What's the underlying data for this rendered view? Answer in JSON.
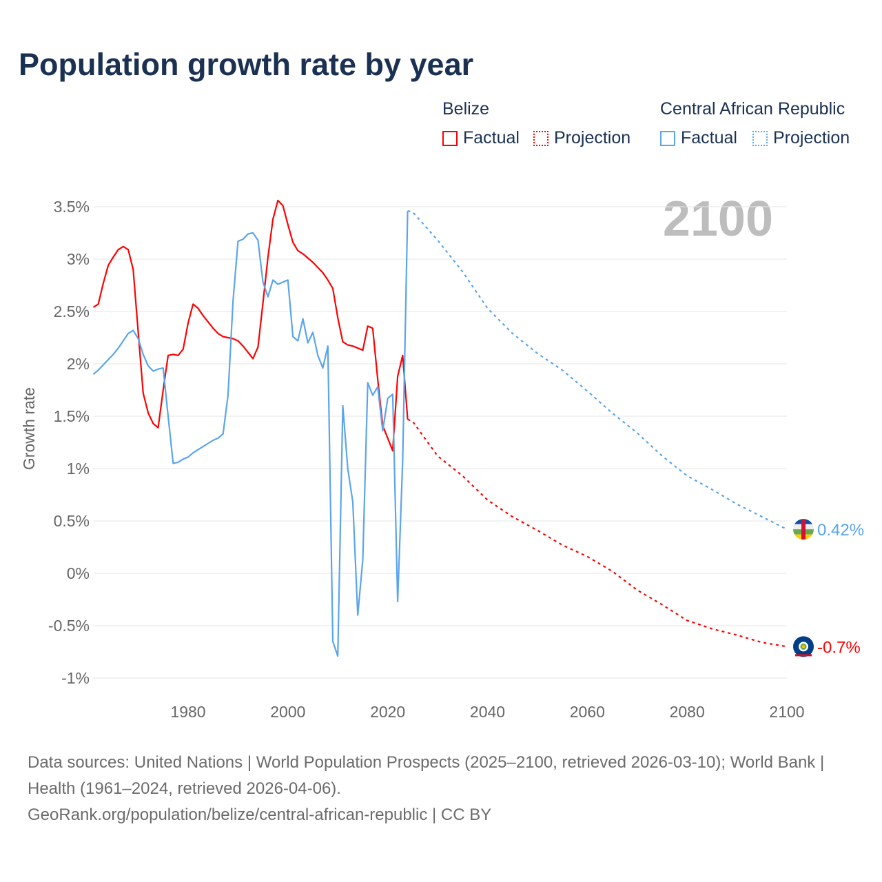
{
  "title": "Population growth rate by year",
  "legend": {
    "groups": [
      {
        "name": "Belize",
        "color": "#ff0000",
        "factual": "Factual",
        "projection": "Projection"
      },
      {
        "name": "Central African Republic",
        "color": "#5aa5ec",
        "factual": "Factual",
        "projection": "Projection"
      }
    ]
  },
  "chart_data": {
    "type": "line",
    "title": "Population growth rate by year",
    "ylabel": "Growth rate",
    "xlabel": "",
    "year_watermark": "2100",
    "xlim": [
      1961,
      2100
    ],
    "ylim": [
      -1,
      3.5
    ],
    "x_ticks": [
      "1980",
      "2000",
      "2020",
      "2040",
      "2060",
      "2080",
      "2100"
    ],
    "y_ticks": [
      {
        "v": 3.5,
        "label": "3.5%"
      },
      {
        "v": 3,
        "label": "3%"
      },
      {
        "v": 2.5,
        "label": "2.5%"
      },
      {
        "v": 2,
        "label": "2%"
      },
      {
        "v": 1.5,
        "label": "1.5%"
      },
      {
        "v": 1,
        "label": "1%"
      },
      {
        "v": 0.5,
        "label": "0.5%"
      },
      {
        "v": 0,
        "label": "0%"
      },
      {
        "v": -0.5,
        "label": "-0.5%"
      },
      {
        "v": -1,
        "label": "-1%"
      }
    ],
    "grid": true,
    "series": [
      {
        "name": "Belize",
        "color": "#ff0000",
        "end_label": "-0.7%",
        "flag": "belize-flag",
        "factual": {
          "start_year": 1961,
          "values": [
            2.54,
            2.57,
            2.77,
            2.94,
            3.02,
            3.09,
            3.12,
            3.09,
            2.9,
            2.3,
            1.72,
            1.53,
            1.43,
            1.39,
            1.75,
            2.08,
            2.09,
            2.08,
            2.14,
            2.39,
            2.57,
            2.53,
            2.46,
            2.4,
            2.34,
            2.29,
            2.26,
            2.25,
            2.24,
            2.22,
            2.17,
            2.11,
            2.05,
            2.16,
            2.58,
            3.02,
            3.38,
            3.56,
            3.51,
            3.33,
            3.16,
            3.08,
            3.05,
            3.01,
            2.97,
            2.92,
            2.87,
            2.8,
            2.72,
            2.44,
            2.21,
            2.18,
            2.17,
            2.15,
            2.13,
            2.36,
            2.34,
            1.85,
            1.41,
            1.29,
            1.17,
            1.88,
            2.08,
            1.47
          ]
        },
        "projection": {
          "years": [
            2024,
            2025,
            2030,
            2035,
            2040,
            2045,
            2050,
            2055,
            2060,
            2065,
            2070,
            2075,
            2080,
            2085,
            2090,
            2095,
            2100
          ],
          "values": [
            1.47,
            1.45,
            1.12,
            0.93,
            0.7,
            0.54,
            0.41,
            0.27,
            0.16,
            0.02,
            -0.16,
            -0.3,
            -0.45,
            -0.53,
            -0.59,
            -0.66,
            -0.7
          ]
        }
      },
      {
        "name": "Central African Republic",
        "color": "#5aa5ec",
        "end_label": "0.42%",
        "flag": "car-flag",
        "factual": {
          "start_year": 1961,
          "values": [
            1.9,
            1.94,
            1.99,
            2.04,
            2.09,
            2.15,
            2.22,
            2.29,
            2.32,
            2.24,
            2.09,
            1.98,
            1.93,
            1.95,
            1.96,
            1.5,
            1.05,
            1.06,
            1.09,
            1.11,
            1.15,
            1.18,
            1.21,
            1.24,
            1.27,
            1.29,
            1.33,
            1.7,
            2.6,
            3.17,
            3.19,
            3.24,
            3.25,
            3.18,
            2.78,
            2.64,
            2.8,
            2.76,
            2.78,
            2.8,
            2.26,
            2.22,
            2.43,
            2.2,
            2.3,
            2.08,
            1.96,
            2.17,
            -0.65,
            -0.79,
            1.6,
            1.0,
            0.68,
            -0.4,
            0.13,
            1.82,
            1.7,
            1.78,
            1.36,
            1.67,
            1.71,
            -0.27,
            1.08,
            3.46
          ]
        },
        "projection": {
          "years": [
            2024,
            2025,
            2030,
            2035,
            2040,
            2045,
            2050,
            2055,
            2060,
            2065,
            2070,
            2075,
            2080,
            2085,
            2090,
            2095,
            2100
          ],
          "values": [
            3.46,
            3.45,
            3.18,
            2.88,
            2.53,
            2.29,
            2.1,
            1.94,
            1.74,
            1.53,
            1.34,
            1.12,
            0.93,
            0.8,
            0.66,
            0.54,
            0.42
          ]
        }
      }
    ]
  },
  "footer": {
    "sources": "Data sources: United Nations | World Population Prospects (2025–2100, retrieved 2026-03-10); World Bank | Health (1961–2024, retrieved 2026-04-06).",
    "link": "GeoRank.org/population/belize/central-african-republic | CC BY"
  }
}
